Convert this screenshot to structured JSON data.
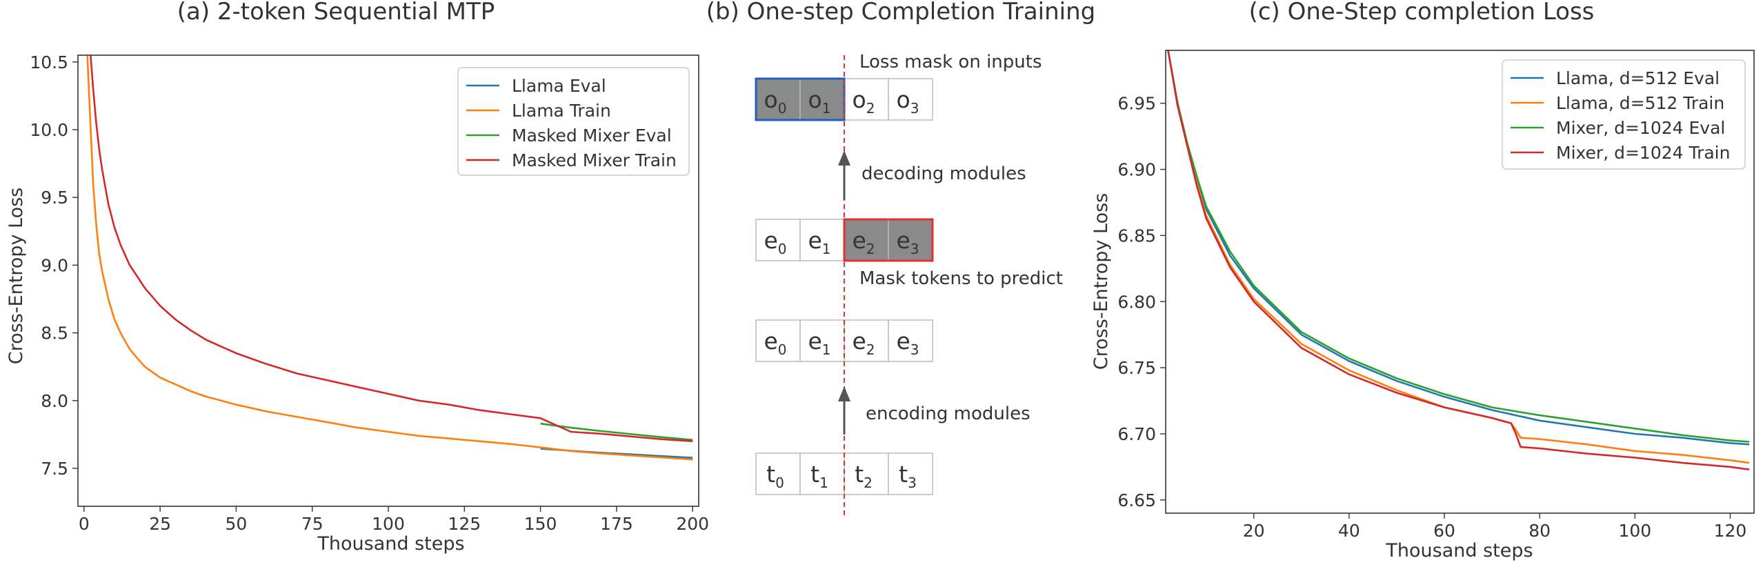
{
  "chart_data": [
    {
      "type": "line",
      "title": "(a) 2-token Sequential MTP",
      "xlabel": "Thousand steps",
      "ylabel": "Cross-Entropy Loss",
      "xlim": [
        -2,
        202
      ],
      "ylim": [
        7.22,
        10.55
      ],
      "xticks": [
        0,
        25,
        50,
        75,
        100,
        125,
        150,
        175,
        200
      ],
      "yticks": [
        7.5,
        8.0,
        8.5,
        9.0,
        9.5,
        10.0,
        10.5
      ],
      "ytick_labels": [
        "7.5",
        "8.0",
        "8.5",
        "9.0",
        "9.5",
        "10.0",
        "10.5"
      ],
      "grid": false,
      "legend_position": "top-right",
      "series": [
        {
          "name": "Llama Eval",
          "color": "#1f77b4",
          "x": [
            150,
            160,
            170,
            180,
            190,
            200
          ],
          "y": [
            7.645,
            7.63,
            7.615,
            7.603,
            7.59,
            7.578
          ]
        },
        {
          "name": "Llama Train",
          "color": "#ff7f0e",
          "x": [
            1,
            2,
            3,
            4,
            5,
            6,
            8,
            10,
            12,
            15,
            18,
            20,
            25,
            30,
            35,
            40,
            45,
            50,
            60,
            70,
            80,
            90,
            100,
            110,
            120,
            130,
            140,
            150,
            160,
            170,
            180,
            190,
            200
          ],
          "y": [
            10.6,
            10.1,
            9.6,
            9.3,
            9.08,
            8.95,
            8.75,
            8.6,
            8.5,
            8.38,
            8.3,
            8.25,
            8.17,
            8.12,
            8.07,
            8.03,
            8.0,
            7.97,
            7.92,
            7.88,
            7.84,
            7.8,
            7.77,
            7.74,
            7.72,
            7.7,
            7.68,
            7.655,
            7.628,
            7.61,
            7.595,
            7.58,
            7.565
          ]
        },
        {
          "name": "Masked Mixer Eval",
          "color": "#2ca02c",
          "x": [
            150,
            160,
            170,
            180,
            190,
            200
          ],
          "y": [
            7.83,
            7.8,
            7.775,
            7.752,
            7.73,
            7.71
          ]
        },
        {
          "name": "Masked Mixer Train",
          "color": "#d62728",
          "x": [
            2,
            3,
            4,
            5,
            6,
            8,
            10,
            12,
            15,
            18,
            20,
            25,
            30,
            35,
            40,
            45,
            50,
            60,
            70,
            80,
            90,
            100,
            110,
            120,
            130,
            140,
            150,
            160,
            170,
            180,
            190,
            200
          ],
          "y": [
            10.6,
            10.3,
            10.05,
            9.85,
            9.7,
            9.45,
            9.28,
            9.15,
            9.0,
            8.9,
            8.83,
            8.7,
            8.6,
            8.52,
            8.45,
            8.4,
            8.35,
            8.27,
            8.2,
            8.15,
            8.1,
            8.05,
            8.0,
            7.97,
            7.93,
            7.9,
            7.87,
            7.77,
            7.755,
            7.735,
            7.715,
            7.7
          ]
        }
      ]
    },
    {
      "type": "line",
      "title": "(c) One-Step completion Loss",
      "xlabel": "Thousand steps",
      "ylabel": "Cross-Entropy Loss",
      "xlim": [
        1.5,
        125
      ],
      "ylim": [
        6.64,
        6.99
      ],
      "xticks": [
        20,
        40,
        60,
        80,
        100,
        120
      ],
      "yticks": [
        6.65,
        6.7,
        6.75,
        6.8,
        6.85,
        6.9,
        6.95
      ],
      "ytick_labels": [
        "6.65",
        "6.70",
        "6.75",
        "6.80",
        "6.85",
        "6.90",
        "6.95"
      ],
      "grid": false,
      "legend_position": "top-right",
      "series": [
        {
          "name": "Llama, d=512 Eval",
          "color": "#1f77b4",
          "x": [
            2,
            4,
            6,
            8,
            10,
            15,
            20,
            30,
            40,
            50,
            60,
            70,
            80,
            90,
            100,
            110,
            120,
            124
          ],
          "y": [
            6.99,
            6.95,
            6.92,
            6.895,
            6.87,
            6.835,
            6.81,
            6.775,
            6.755,
            6.74,
            6.728,
            6.718,
            6.71,
            6.705,
            6.7,
            6.697,
            6.693,
            6.692
          ]
        },
        {
          "name": "Llama, d=512 Train",
          "color": "#ff7f0e",
          "x": [
            2,
            4,
            6,
            8,
            10,
            15,
            20,
            30,
            40,
            50,
            60,
            70,
            74,
            75,
            76,
            80,
            90,
            100,
            110,
            120,
            124
          ],
          "y": [
            6.99,
            6.95,
            6.92,
            6.89,
            6.865,
            6.828,
            6.802,
            6.768,
            6.748,
            6.733,
            6.72,
            6.712,
            6.708,
            6.703,
            6.697,
            6.696,
            6.692,
            6.687,
            6.684,
            6.68,
            6.678
          ]
        },
        {
          "name": "Mixer, d=1024 Eval",
          "color": "#2ca02c",
          "x": [
            2,
            4,
            6,
            8,
            10,
            15,
            20,
            30,
            40,
            50,
            60,
            70,
            80,
            90,
            100,
            110,
            120,
            124
          ],
          "y": [
            6.99,
            6.95,
            6.92,
            6.895,
            6.872,
            6.838,
            6.812,
            6.777,
            6.757,
            6.742,
            6.73,
            6.72,
            6.714,
            6.709,
            6.704,
            6.699,
            6.695,
            6.694
          ]
        },
        {
          "name": "Mixer, d=1024 Train",
          "color": "#d62728",
          "x": [
            2,
            4,
            6,
            8,
            10,
            15,
            20,
            30,
            40,
            50,
            60,
            70,
            74,
            75,
            76,
            80,
            90,
            100,
            110,
            120,
            124
          ],
          "y": [
            6.99,
            6.948,
            6.918,
            6.888,
            6.863,
            6.826,
            6.8,
            6.765,
            6.745,
            6.731,
            6.72,
            6.712,
            6.708,
            6.7,
            6.69,
            6.689,
            6.685,
            6.682,
            6.678,
            6.675,
            6.673
          ]
        }
      ]
    }
  ],
  "diagram": {
    "title": "(b) One-step Completion Training",
    "rows": [
      {
        "symbol": "o",
        "subscripts": [
          "0",
          "1",
          "2",
          "3"
        ],
        "masked": [
          true,
          true,
          false,
          false
        ],
        "mask_color": "#1f5fbf"
      },
      {
        "symbol": "e",
        "subscripts": [
          "0",
          "1",
          "2",
          "3"
        ],
        "masked": [
          false,
          false,
          true,
          true
        ],
        "mask_color": "#e03030"
      },
      {
        "symbol": "e",
        "subscripts": [
          "0",
          "1",
          "2",
          "3"
        ],
        "masked": [
          false,
          false,
          false,
          false
        ]
      },
      {
        "symbol": "t",
        "subscripts": [
          "0",
          "1",
          "2",
          "3"
        ],
        "masked": [
          false,
          false,
          false,
          false
        ]
      }
    ],
    "labels": {
      "loss_mask": "Loss mask on inputs",
      "decoding": "decoding modules",
      "mask_tokens": "Mask tokens to predict",
      "encoding": "encoding modules"
    }
  }
}
